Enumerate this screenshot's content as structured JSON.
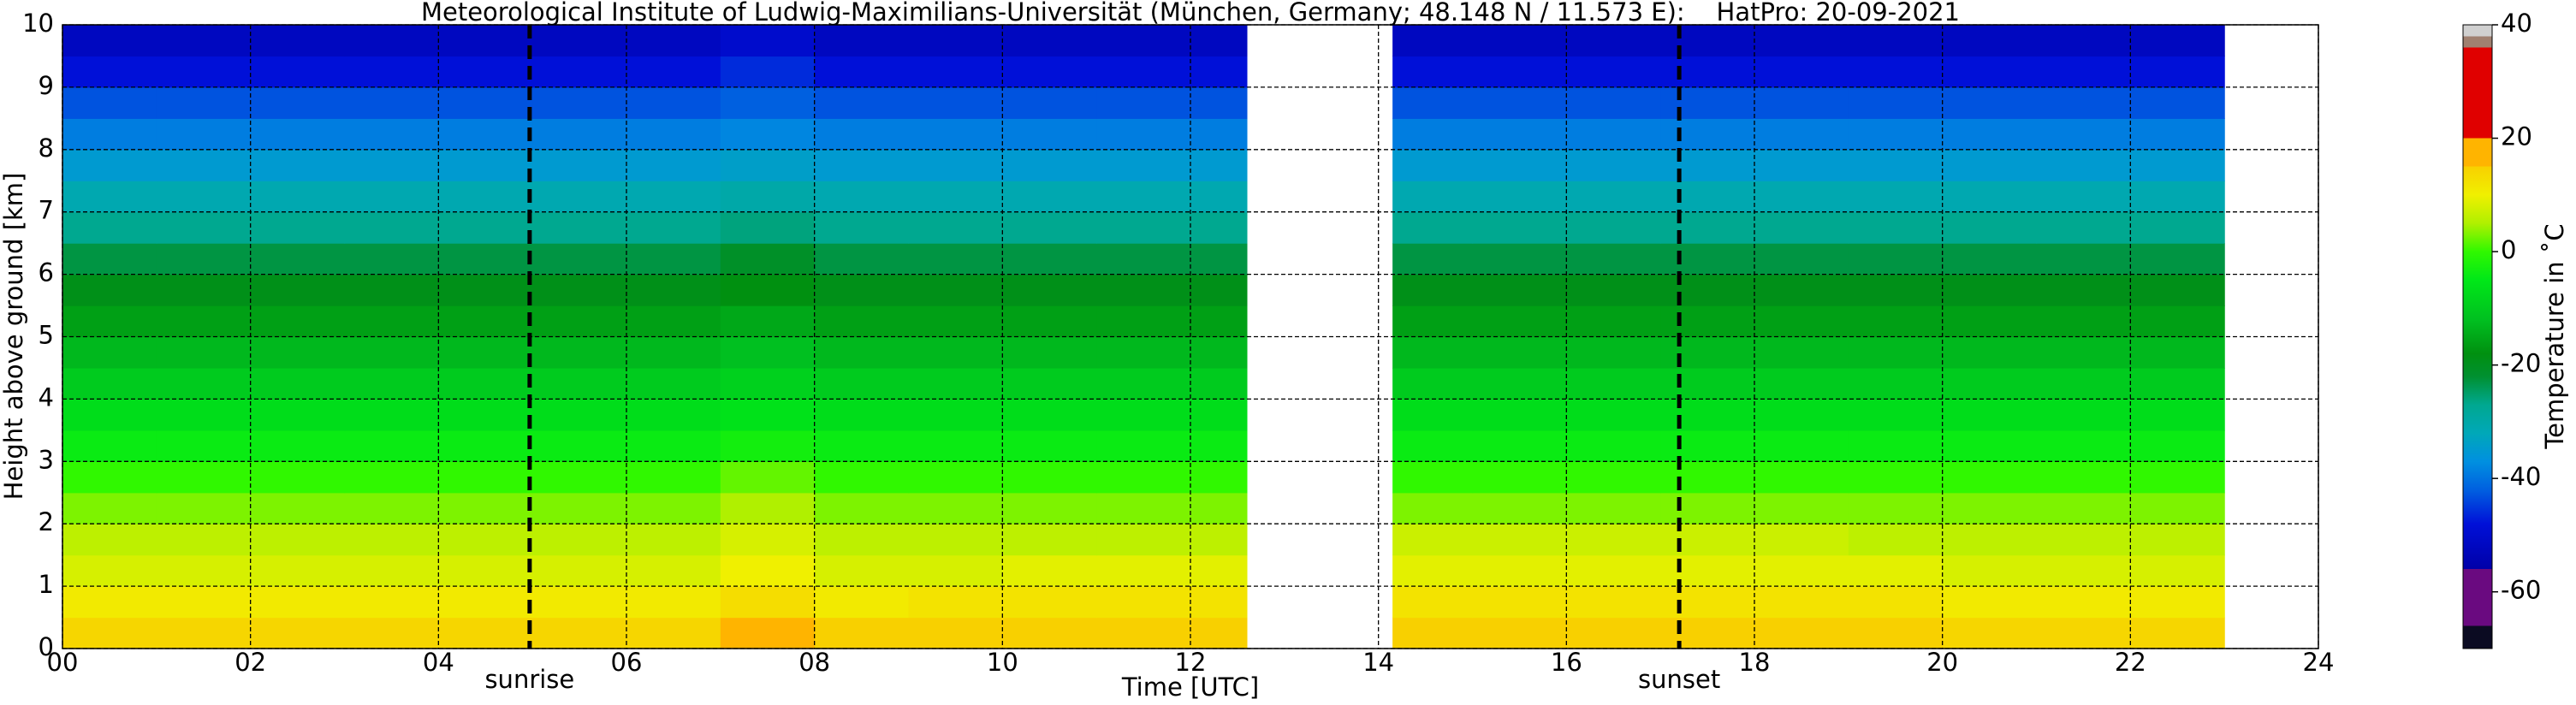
{
  "chart_data": {
    "type": "heatmap",
    "title": "Meteorological Institute of Ludwig-Maximilians-Universität (München, Germany; 48.148 N / 11.573 E):    HatPro: 20-09-2021",
    "xlabel": "Time [UTC]",
    "ylabel": "Height above ground [km]",
    "colorbar_label": "Temperature in ˚C",
    "xlim": [
      0,
      24
    ],
    "ylim": [
      0,
      10
    ],
    "xticks": [
      {
        "value": 0,
        "label": "00"
      },
      {
        "value": 2,
        "label": "02"
      },
      {
        "value": 4,
        "label": "04"
      },
      {
        "value": 6,
        "label": "06"
      },
      {
        "value": 8,
        "label": "08"
      },
      10,
      12,
      14,
      16,
      18,
      20,
      22,
      24
    ],
    "yticks": [
      0,
      1,
      2,
      3,
      4,
      5,
      6,
      7,
      8,
      9,
      10
    ],
    "grid": true,
    "clim": [
      -70,
      40
    ],
    "cticks": [
      -60,
      -40,
      -20,
      0,
      20,
      40
    ],
    "colormap": [
      [
        -70,
        "#0b0b22"
      ],
      [
        -66,
        "#0b0b22"
      ],
      [
        -66,
        "#6a0a80"
      ],
      [
        -56,
        "#6a0a80"
      ],
      [
        -56,
        "#0000a8"
      ],
      [
        -48,
        "#0010d8"
      ],
      [
        -42,
        "#0060e0"
      ],
      [
        -37,
        "#0090e0"
      ],
      [
        -32,
        "#00a8b8"
      ],
      [
        -27,
        "#00a890"
      ],
      [
        -22,
        "#009030"
      ],
      [
        -18,
        "#009010"
      ],
      [
        -12,
        "#00c020"
      ],
      [
        -5,
        "#00e818"
      ],
      [
        0,
        "#30f800"
      ],
      [
        5,
        "#b0f000"
      ],
      [
        10,
        "#f0f000"
      ],
      [
        15,
        "#f8d000"
      ],
      [
        15,
        "#ffb400"
      ],
      [
        20,
        "#ffb400"
      ],
      [
        20,
        "#e00000"
      ],
      [
        36,
        "#e00000"
      ],
      [
        36,
        "#a08070"
      ],
      [
        38,
        "#a08070"
      ],
      [
        38,
        "#d0d0d0"
      ],
      [
        40,
        "#d0d0d0"
      ]
    ],
    "annotations": [
      {
        "x": 4.97,
        "label": "sunrise"
      },
      {
        "x": 17.2,
        "label": "sunset"
      }
    ],
    "xbins": [
      0,
      1,
      2,
      3,
      4,
      5,
      6,
      7,
      8,
      9,
      10,
      11,
      12,
      12.6,
      14.15,
      15,
      16,
      17,
      18,
      19,
      20,
      21,
      22,
      23
    ],
    "ybins": [
      0,
      0.5,
      1,
      1.5,
      2,
      2.5,
      3,
      3.5,
      4,
      4.5,
      5,
      5.5,
      6,
      6.5,
      7,
      7.5,
      8,
      8.5,
      9,
      9.5,
      10
    ],
    "z": [
      [
        14,
        14,
        14,
        14,
        14,
        14,
        14,
        17,
        15,
        15,
        15,
        15,
        15,
        null,
        15,
        15,
        15,
        15,
        15,
        15,
        14,
        14,
        14
      ],
      [
        11,
        11,
        11,
        11,
        11,
        11,
        11,
        13,
        11,
        12,
        12,
        12,
        12,
        null,
        12,
        12,
        12,
        12,
        12,
        12,
        11,
        11,
        11
      ],
      [
        8,
        8,
        8,
        8,
        8,
        8,
        8,
        10,
        8,
        8,
        9,
        9,
        9,
        null,
        9,
        9,
        9,
        9,
        9,
        9,
        8,
        8,
        8
      ],
      [
        6,
        6,
        6,
        6,
        6,
        6,
        6,
        8,
        6,
        6,
        6,
        6,
        6,
        null,
        7,
        7,
        7,
        7,
        7,
        6,
        6,
        6,
        6
      ],
      [
        3,
        3,
        3,
        3,
        3,
        3,
        3,
        5,
        3,
        3,
        3,
        3,
        3,
        null,
        3,
        3,
        3,
        3,
        3,
        3,
        3,
        3,
        3
      ],
      [
        0,
        0,
        0,
        0,
        0,
        0,
        0,
        2,
        0,
        0,
        0,
        0,
        0,
        null,
        0,
        0,
        0,
        0,
        0,
        0,
        0,
        0,
        0
      ],
      [
        -4,
        -4,
        -4,
        -4,
        -4,
        -4,
        -4,
        -3,
        -4,
        -4,
        -4,
        -4,
        -4,
        null,
        -4,
        -4,
        -4,
        -4,
        -4,
        -4,
        -4,
        -4,
        -4
      ],
      [
        -7,
        -7,
        -7,
        -7,
        -7,
        -7,
        -7,
        -6,
        -7,
        -7,
        -7,
        -7,
        -7,
        null,
        -7,
        -7,
        -7,
        -7,
        -7,
        -7,
        -7,
        -7,
        -7
      ],
      [
        -10,
        -10,
        -10,
        -10,
        -10,
        -10,
        -10,
        -9,
        -10,
        -10,
        -10,
        -10,
        -10,
        null,
        -10,
        -10,
        -10,
        -10,
        -10,
        -10,
        -10,
        -10,
        -10
      ],
      [
        -13,
        -13,
        -13,
        -13,
        -13,
        -13,
        -13,
        -12,
        -13,
        -13,
        -13,
        -13,
        -13,
        null,
        -13,
        -13,
        -13,
        -13,
        -13,
        -13,
        -13,
        -13,
        -13
      ],
      [
        -16,
        -16,
        -16,
        -16,
        -16,
        -16,
        -16,
        -15,
        -16,
        -16,
        -16,
        -16,
        -16,
        null,
        -16,
        -16,
        -16,
        -16,
        -16,
        -16,
        -16,
        -16,
        -16
      ],
      [
        -19,
        -19,
        -19,
        -19,
        -19,
        -19,
        -19,
        -18,
        -19,
        -19,
        -19,
        -19,
        -19,
        null,
        -19,
        -19,
        -19,
        -19,
        -19,
        -19,
        -19,
        -19,
        -19
      ],
      [
        -23,
        -23,
        -23,
        -23,
        -23,
        -23,
        -23,
        -21,
        -23,
        -23,
        -23,
        -23,
        -23,
        null,
        -23,
        -23,
        -23,
        -23,
        -23,
        -23,
        -23,
        -23,
        -23
      ],
      [
        -27,
        -27,
        -27,
        -27,
        -27,
        -27,
        -27,
        -26,
        -27,
        -27,
        -27,
        -27,
        -27,
        null,
        -27,
        -27,
        -27,
        -27,
        -27,
        -27,
        -27,
        -27,
        -27
      ],
      [
        -31,
        -31,
        -31,
        -31,
        -31,
        -31,
        -31,
        -30,
        -31,
        -31,
        -31,
        -31,
        -31,
        null,
        -31,
        -31,
        -31,
        -31,
        -31,
        -31,
        -31,
        -31,
        -31
      ],
      [
        -35,
        -35,
        -35,
        -35,
        -35,
        -35,
        -35,
        -34,
        -35,
        -35,
        -35,
        -35,
        -35,
        null,
        -35,
        -35,
        -35,
        -35,
        -35,
        -35,
        -35,
        -35,
        -35
      ],
      [
        -39,
        -39,
        -39,
        -39,
        -39,
        -39,
        -39,
        -38,
        -39,
        -39,
        -39,
        -39,
        -39,
        null,
        -39,
        -39,
        -39,
        -39,
        -39,
        -39,
        -39,
        -39,
        -39
      ],
      [
        -43,
        -43,
        -43,
        -43,
        -43,
        -43,
        -43,
        -42,
        -43,
        -43,
        -43,
        -43,
        -43,
        null,
        -43,
        -43,
        -43,
        -43,
        -43,
        -43,
        -43,
        -43,
        -43
      ],
      [
        -48,
        -48,
        -48,
        -48,
        -48,
        -48,
        -48,
        -46,
        -48,
        -48,
        -48,
        -48,
        -48,
        null,
        -48,
        -48,
        -48,
        -48,
        -48,
        -48,
        -48,
        -48,
        -48
      ],
      [
        -52,
        -52,
        -52,
        -52,
        -52,
        -52,
        -52,
        -50,
        -52,
        -52,
        -52,
        -52,
        -52,
        null,
        -52,
        -52,
        -52,
        -52,
        -52,
        -52,
        -52,
        -52,
        -52
      ]
    ]
  }
}
